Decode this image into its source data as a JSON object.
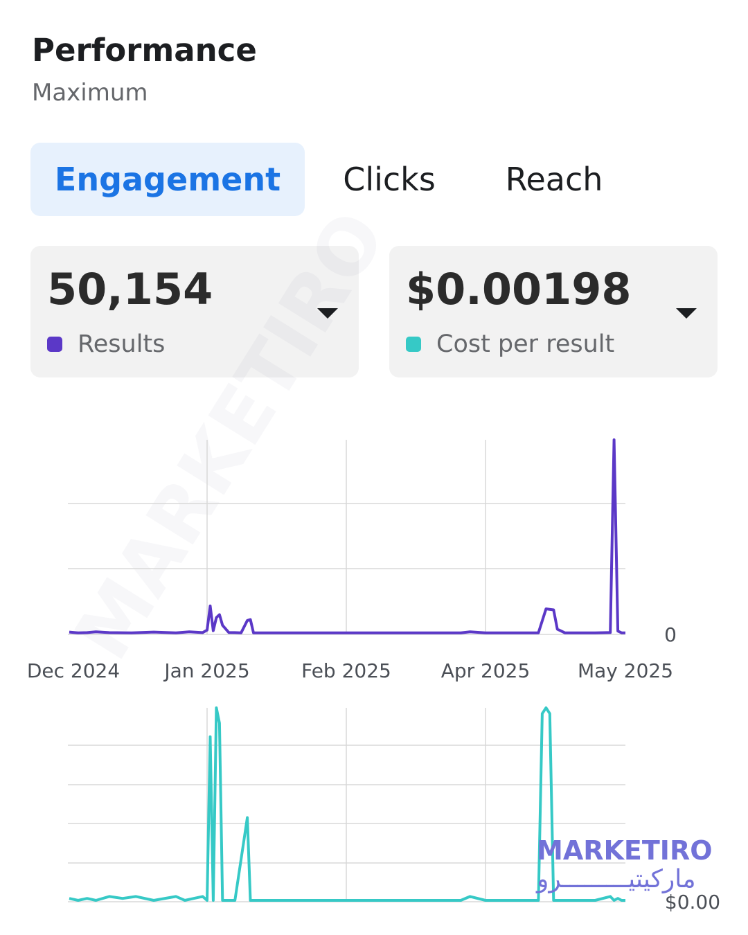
{
  "header": {
    "title": "Performance",
    "subtitle": "Maximum"
  },
  "tabs": [
    {
      "label": "Engagement",
      "active": true
    },
    {
      "label": "Clicks",
      "active": false
    },
    {
      "label": "Reach",
      "active": false
    }
  ],
  "metrics": [
    {
      "value": "50,154",
      "label": "Results",
      "color": "#5b38c7"
    },
    {
      "value": "$0.00198",
      "label": "Cost per result",
      "color": "#36c9c6"
    }
  ],
  "watermark": {
    "text_en": "MARKETIRO",
    "text_ar": "ماركيتيـــــــــرو"
  },
  "chart_data": [
    {
      "type": "line",
      "title": "",
      "x_tick_labels": [
        "Dec 2024",
        "Jan 2025",
        "Feb 2025",
        "Apr 2025",
        "May 2025"
      ],
      "y_tick_labels": [
        "0"
      ],
      "series": [
        {
          "name": "Results",
          "color": "#5b38c7",
          "x": [
            "2024-12-01",
            "2024-12-03",
            "2024-12-05",
            "2024-12-07",
            "2024-12-10",
            "2024-12-15",
            "2024-12-20",
            "2024-12-25",
            "2024-12-28",
            "2024-12-31",
            "2025-01-01",
            "2025-01-02",
            "2025-01-03",
            "2025-01-04",
            "2025-01-05",
            "2025-01-06",
            "2025-01-08",
            "2025-01-10",
            "2025-01-12",
            "2025-01-14",
            "2025-01-15",
            "2025-01-16",
            "2025-01-18",
            "2025-01-31",
            "2025-02-15",
            "2025-03-15",
            "2025-03-24",
            "2025-03-27",
            "2025-04-01",
            "2025-04-15",
            "2025-04-17",
            "2025-04-19",
            "2025-04-20",
            "2025-04-22",
            "2025-04-25",
            "2025-04-30",
            "2025-05-04",
            "2025-05-05",
            "2025-05-06",
            "2025-05-07",
            "2025-05-08"
          ],
          "y": [
            0.5,
            0.1,
            0.2,
            0.6,
            0.2,
            0.1,
            0.5,
            0.1,
            0.6,
            0.2,
            1.5,
            14.0,
            1.2,
            8.0,
            9.5,
            4.0,
            0.3,
            0.2,
            0.1,
            6.5,
            7.0,
            0.1,
            0.1,
            0.1,
            0.1,
            0.1,
            0.1,
            0.6,
            0.1,
            0.1,
            12.5,
            12.0,
            2.0,
            0.1,
            0.1,
            0.1,
            0.3,
            100.0,
            1.0,
            0.1,
            0.1
          ]
        }
      ]
    },
    {
      "type": "line",
      "title": "",
      "y_tick_labels": [
        "$0.00"
      ],
      "series": [
        {
          "name": "Cost per result",
          "color": "#36c9c6",
          "x": [
            "2024-12-01",
            "2024-12-03",
            "2024-12-05",
            "2024-12-07",
            "2024-12-10",
            "2024-12-13",
            "2024-12-16",
            "2024-12-20",
            "2024-12-25",
            "2024-12-27",
            "2024-12-29",
            "2024-12-31",
            "2025-01-01",
            "2025-01-02",
            "2025-01-03",
            "2025-01-04",
            "2025-01-05",
            "2025-01-06",
            "2025-01-07",
            "2025-01-08",
            "2025-01-10",
            "2025-01-14",
            "2025-01-15",
            "2025-01-16",
            "2025-01-20",
            "2025-02-15",
            "2025-03-15",
            "2025-03-24",
            "2025-03-27",
            "2025-04-01",
            "2025-04-15",
            "2025-04-16",
            "2025-04-17",
            "2025-04-18",
            "2025-04-19",
            "2025-04-20",
            "2025-04-22",
            "2025-04-25",
            "2025-04-30",
            "2025-05-04",
            "2025-05-05",
            "2025-05-06",
            "2025-05-07",
            "2025-05-08"
          ],
          "y": [
            1,
            0,
            1,
            0,
            2,
            1,
            2,
            0,
            2,
            0,
            1,
            2,
            0,
            85,
            0,
            100,
            92,
            0,
            0,
            0,
            0,
            43,
            0,
            0,
            0,
            0,
            0,
            0,
            2,
            0,
            0,
            97,
            100,
            97,
            0,
            0,
            0,
            0,
            0,
            2,
            0,
            1,
            0,
            0
          ]
        }
      ]
    }
  ]
}
